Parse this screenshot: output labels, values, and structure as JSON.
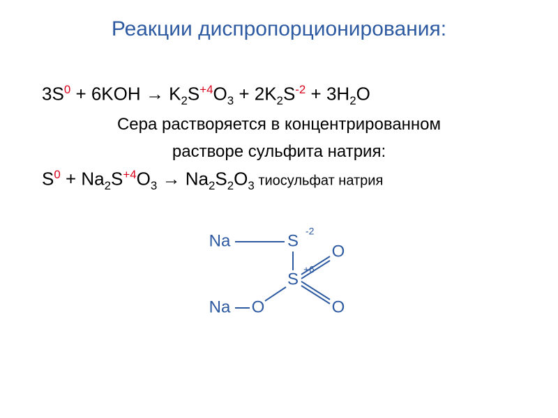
{
  "title": "Реакции диспропорционирования:",
  "equation1": {
    "parts": [
      {
        "text": "3S",
        "color": "#000000"
      },
      {
        "text": "0",
        "type": "sup",
        "color": "#d9001b"
      },
      {
        "text": " + 6KOH → K",
        "color": "#000000"
      },
      {
        "text": "2",
        "type": "sub",
        "color": "#000000"
      },
      {
        "text": "S",
        "color": "#000000"
      },
      {
        "text": "+4",
        "type": "sup",
        "color": "#d9001b"
      },
      {
        "text": "O",
        "color": "#000000"
      },
      {
        "text": "3",
        "type": "sub",
        "color": "#000000"
      },
      {
        "text": " + 2K",
        "color": "#000000"
      },
      {
        "text": "2",
        "type": "sub",
        "color": "#000000"
      },
      {
        "text": "S",
        "color": "#000000"
      },
      {
        "text": "-2",
        "type": "sup",
        "color": "#d9001b"
      },
      {
        "text": " + 3H",
        "color": "#000000"
      },
      {
        "text": "2",
        "type": "sub",
        "color": "#000000"
      },
      {
        "text": "O",
        "color": "#000000"
      }
    ]
  },
  "description_line1": "Сера растворяется в концентрированном",
  "description_line2": "растворе сульфита натрия:",
  "equation2": {
    "prefix": "S",
    "sup1": "0",
    "mid1": " + Na",
    "sub1": "2",
    "s1": "S",
    "sup2": "+4",
    "o1": "O",
    "sub2": "3",
    "arrow": " → Na",
    "sub3": "2",
    "s2": "S",
    "sub4": "2",
    "o2": "O",
    "sub5": "3",
    "suffix": " тиосульфат натрия"
  },
  "structure": {
    "colors": {
      "stroke": "#2d5aa0",
      "text": "#2d5aa0",
      "oxidation": "#2d5aa0"
    },
    "labels": {
      "na1": "Na",
      "na2": "Na",
      "s_top": "S",
      "s_center": "S",
      "o_left": "O",
      "o_right_top": "O",
      "o_right_bottom": "O",
      "ox_top": "-2",
      "ox_center": "+6"
    },
    "strokeWidth": 2,
    "fontSize": 24,
    "oxFontSize": 14
  }
}
